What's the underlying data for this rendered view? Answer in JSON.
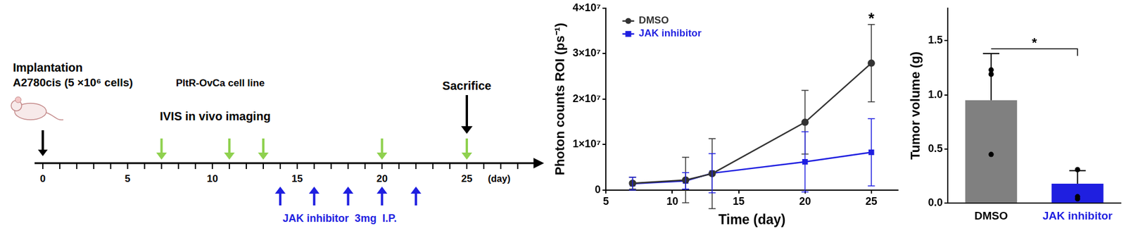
{
  "timeline": {
    "implantation": {
      "label": "Implantation",
      "day": 0,
      "cells": "A2780cis (5 ×10⁶ cells)",
      "cell_line": "PltR-OvCa cell line"
    },
    "imaging": {
      "label": "IVIS in vivo imaging",
      "days": [
        7,
        11,
        13,
        20,
        25
      ],
      "color": "#8fd14f"
    },
    "sacrifice": {
      "label": "Sacrifice",
      "day": 25
    },
    "treatment": {
      "label": "JAK inhibitor  3mg  I.P.",
      "days": [
        14,
        16,
        18,
        20,
        22
      ],
      "color": "#1f1fe0"
    },
    "axis": {
      "xlim": [
        0,
        29
      ],
      "xticks": [
        0,
        5,
        10,
        15,
        20,
        25
      ],
      "minor_ticks": [
        0,
        1,
        2,
        3,
        4,
        5,
        6,
        7,
        8,
        9,
        10,
        11,
        12,
        13,
        14,
        15,
        16,
        17,
        18,
        19,
        20,
        21,
        22,
        23,
        24,
        25,
        26,
        27,
        28
      ],
      "unit_label": "(day)"
    }
  },
  "chart_data": [
    {
      "type": "line",
      "x_label": "Time (day)",
      "y_label": "Photon counts ROI (ps⁻¹)",
      "x": [
        7,
        11,
        13,
        20,
        25
      ],
      "xlim": [
        5,
        27
      ],
      "xticks": [
        5,
        10,
        15,
        20,
        25
      ],
      "ylim": [
        0,
        40000000
      ],
      "yticks": [
        0,
        {
          "value": 10000000,
          "label": "1×10⁷"
        },
        {
          "value": 20000000,
          "label": "2×10⁷"
        },
        {
          "value": 30000000,
          "label": "3×10⁷"
        },
        {
          "value": 40000000,
          "label": "4×10⁷"
        }
      ],
      "grid": false,
      "legend": "upper left",
      "annotations": [
        {
          "x": 25,
          "text": "*"
        }
      ],
      "series": [
        {
          "name": "DMSO",
          "color": "#333333",
          "marker": "circle",
          "line_style": "solid",
          "values": [
            1500000,
            2200000,
            3600000,
            14900000,
            27900000
          ],
          "errors": [
            1300000,
            5000000,
            7700000,
            7000000,
            8500000
          ]
        },
        {
          "name": "JAK inhibitor",
          "color": "#1f1fe0",
          "marker": "square",
          "line_style": "solid",
          "values": [
            1400000,
            2000000,
            3700000,
            6200000,
            8300000
          ],
          "errors": [
            1400000,
            1800000,
            4300000,
            6600000,
            7400000
          ]
        }
      ]
    },
    {
      "type": "bar",
      "y_label": "Tumor volume (g)",
      "categories": [
        "DMSO",
        "JAK inhibitor"
      ],
      "values": [
        0.95,
        0.18
      ],
      "errors": [
        0.43,
        0.12
      ],
      "points": [
        [
          1.23,
          1.19,
          0.45
        ],
        [
          0.31,
          0.06,
          0.04
        ]
      ],
      "colors": [
        "#808080",
        "#1f1fe0"
      ],
      "ylim": [
        0,
        1.8
      ],
      "yticks": [
        {
          "value": 0,
          "label": "0.0"
        },
        0.5,
        {
          "value": 1,
          "label": "1.0"
        },
        1.5
      ],
      "grid": false,
      "significance": {
        "categories": [
          "DMSO",
          "JAK inhibitor"
        ],
        "text": "*"
      }
    }
  ]
}
